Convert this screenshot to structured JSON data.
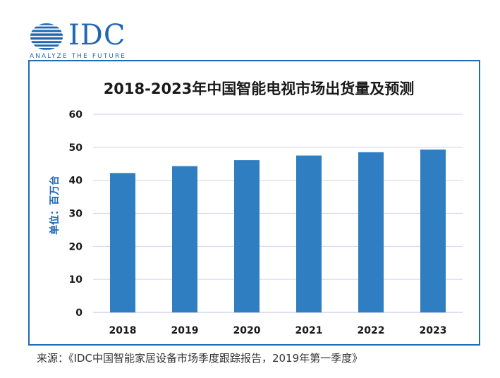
{
  "logo": {
    "wordmark": "IDC",
    "tagline": "ANALYZE THE FUTURE",
    "mark_icon": "idc-globe-icon",
    "color": "#1f67b2"
  },
  "colors": {
    "bar": "#2f7ec1",
    "frame": "#1f6db5",
    "grid": "#d5d8ee",
    "axis_text": "#1a1a1a",
    "title": "#1a1a1a",
    "ylabel": "#1f67b2"
  },
  "chart_data": {
    "type": "bar",
    "title": "2018-2023年中国智能电视市场出货量及预测",
    "xlabel": "",
    "ylabel": "单位：百万台",
    "ylim": [
      0,
      60
    ],
    "yticks": [
      0,
      10,
      20,
      30,
      40,
      50,
      60
    ],
    "grid": true,
    "categories": [
      "2018",
      "2019",
      "2020",
      "2021",
      "2022",
      "2023"
    ],
    "values": [
      42.2,
      44.3,
      46.1,
      47.5,
      48.5,
      49.3
    ]
  },
  "source": "来源：《IDC中国智能家居设备市场季度跟踪报告，2019年第一季度》"
}
